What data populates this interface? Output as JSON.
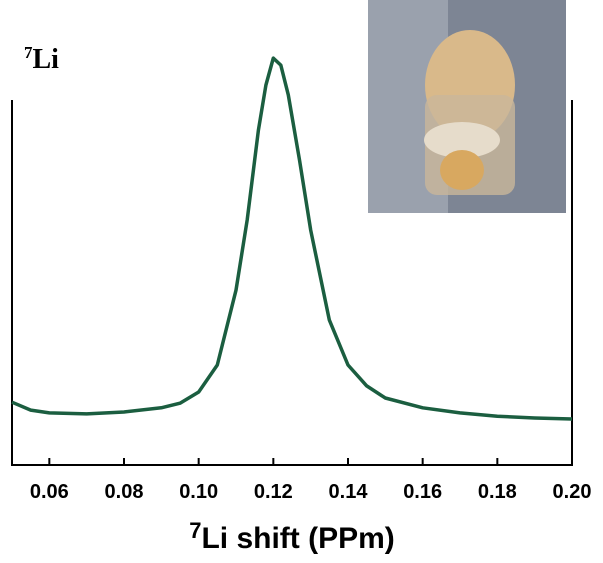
{
  "chart_data": {
    "type": "line",
    "annotation": {
      "sup": "7",
      "text": "Li"
    },
    "xlabel": {
      "sup": "7",
      "text": "Li shift (PPm)"
    },
    "xlim": [
      0.05,
      0.2
    ],
    "xticks": [
      0.06,
      0.08,
      {
        "value": 0.1,
        "label": "0.10"
      },
      0.12,
      0.14,
      0.16,
      0.18,
      {
        "value": 0.2,
        "label": "0.20"
      }
    ],
    "ylim": [
      0,
      1
    ],
    "series": [
      {
        "color": "#1b5e40",
        "x": [
          0.05,
          0.055,
          0.06,
          0.07,
          0.08,
          0.09,
          0.095,
          0.1,
          0.105,
          0.11,
          0.113,
          0.116,
          0.118,
          0.12,
          0.122,
          0.124,
          0.127,
          0.13,
          0.135,
          0.14,
          0.145,
          0.15,
          0.16,
          0.17,
          0.18,
          0.19,
          0.2
        ],
        "values": [
          0.135,
          0.118,
          0.112,
          0.11,
          0.114,
          0.123,
          0.133,
          0.157,
          0.215,
          0.376,
          0.527,
          0.72,
          0.817,
          0.875,
          0.86,
          0.796,
          0.656,
          0.505,
          0.312,
          0.215,
          0.17,
          0.144,
          0.123,
          0.112,
          0.105,
          0.101,
          0.099
        ]
      }
    ]
  }
}
